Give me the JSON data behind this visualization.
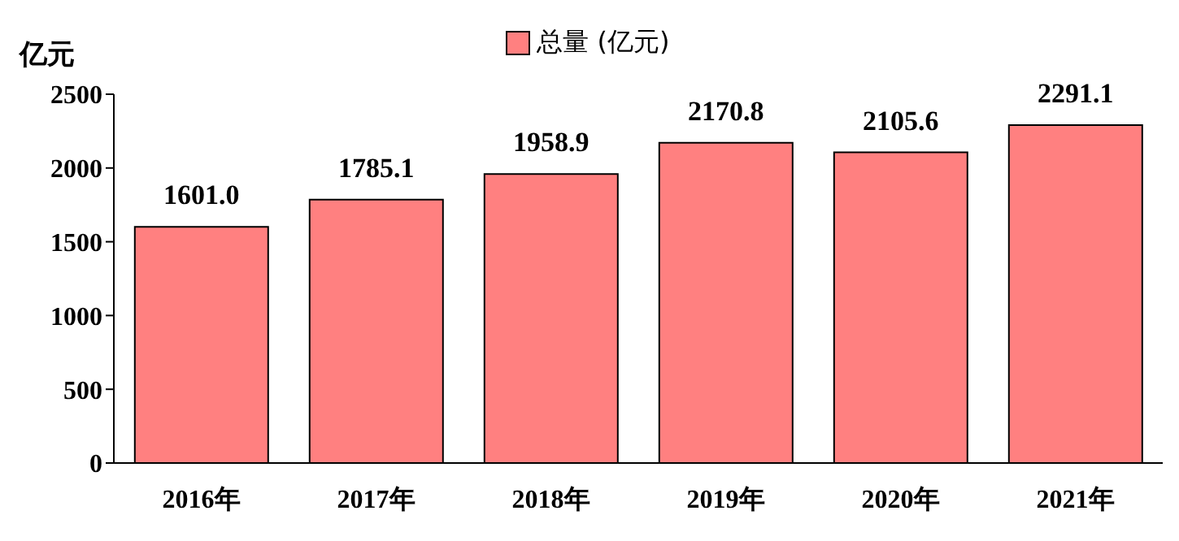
{
  "chart_data": {
    "type": "bar",
    "ylabel": "亿元",
    "categories": [
      "2016年",
      "2017年",
      "2018年",
      "2019年",
      "2020年",
      "2021年"
    ],
    "series": [
      {
        "name": "总量 (亿元)",
        "color": "#ff8080",
        "values": [
          1601,
          1785.1,
          1958.9,
          2170.8,
          2105.6,
          2291.1
        ],
        "value_labels": [
          "1601.0",
          "1785.1",
          "1958.9",
          "2170.8",
          "2105.6",
          "2291.1"
        ]
      }
    ],
    "ylim": [
      0,
      2500
    ],
    "yticks": [
      0,
      500,
      1000,
      1500,
      2000,
      2500
    ],
    "legend": "top",
    "grid": false
  }
}
